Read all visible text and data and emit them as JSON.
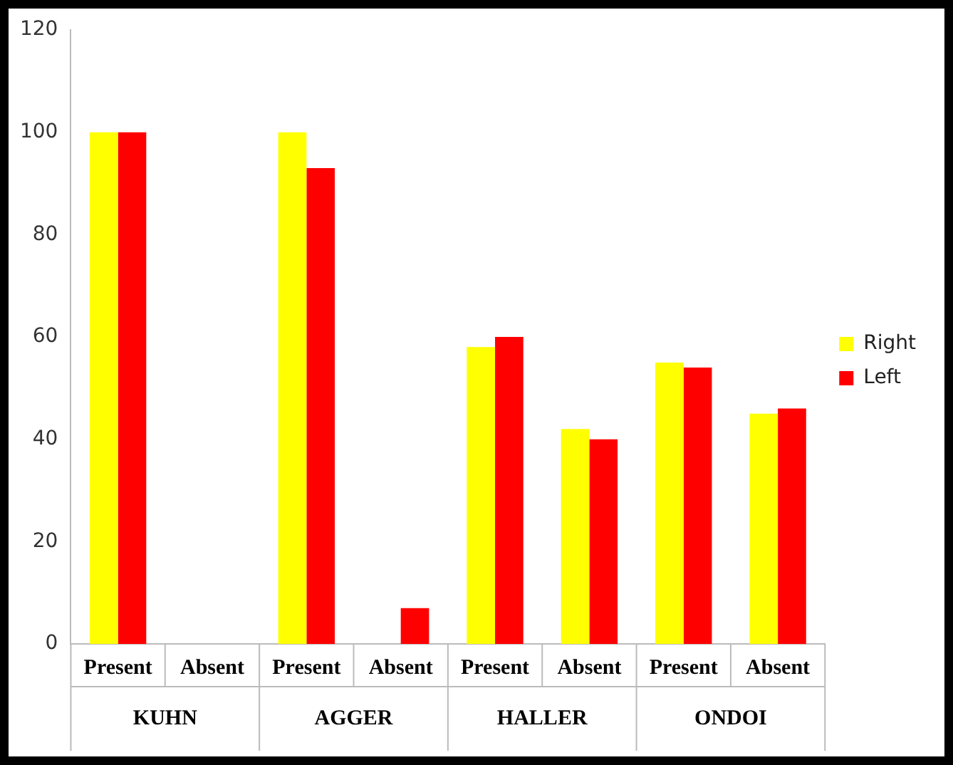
{
  "chart_data": {
    "type": "bar",
    "categories": [
      "Present",
      "Absent",
      "Present",
      "Absent",
      "Present",
      "Absent",
      "Present",
      "Absent"
    ],
    "series": [
      {
        "name": "Right",
        "color": "#ffff00",
        "values": [
          100,
          0,
          100,
          0,
          58,
          42,
          55,
          45
        ]
      },
      {
        "name": "Left",
        "color": "#ff0000",
        "values": [
          100,
          0,
          93,
          7,
          60,
          40,
          54,
          46
        ]
      }
    ],
    "annotations": [
      "KUHN",
      "AGGER",
      "HALLER",
      "ONDOI"
    ],
    "ylim": [
      0,
      120
    ],
    "yticks": [
      0,
      20,
      40,
      60,
      80,
      100,
      120
    ],
    "grid": false,
    "legend": "right"
  }
}
